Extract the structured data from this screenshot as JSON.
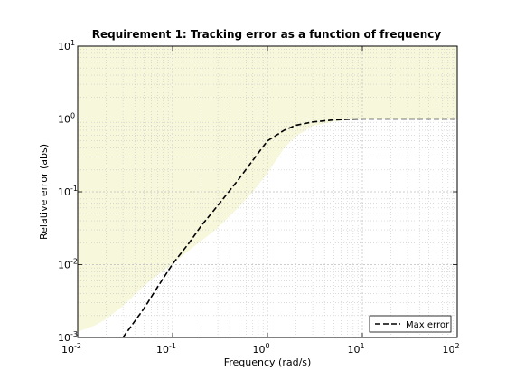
{
  "chart_data": {
    "type": "line",
    "title": "Requirement 1: Tracking error as a function of frequency",
    "xlabel": "Frequency (rad/s)",
    "ylabel": "Relative error (abs)",
    "xscale": "log",
    "yscale": "log",
    "xlim": [
      0.01,
      100
    ],
    "ylim": [
      0.001,
      10
    ],
    "x_ticks": [
      {
        "base": "10",
        "exp": "-2",
        "value": 0.01
      },
      {
        "base": "10",
        "exp": "-1",
        "value": 0.1
      },
      {
        "base": "10",
        "exp": "0",
        "value": 1
      },
      {
        "base": "10",
        "exp": "1",
        "value": 10
      },
      {
        "base": "10",
        "exp": "2",
        "value": 100
      }
    ],
    "y_ticks": [
      {
        "base": "10",
        "exp": "-3",
        "value": 0.001
      },
      {
        "base": "10",
        "exp": "-2",
        "value": 0.01
      },
      {
        "base": "10",
        "exp": "-1",
        "value": 0.1
      },
      {
        "base": "10",
        "exp": "0",
        "value": 1
      },
      {
        "base": "10",
        "exp": "1",
        "value": 10
      }
    ],
    "grid": true,
    "minor_grid": true,
    "shaded_region": {
      "description_color": "#f7f7dc",
      "x": [
        0.01,
        0.015,
        0.02,
        0.03,
        0.05,
        0.07,
        0.1,
        0.15,
        0.2,
        0.3,
        0.5,
        0.7,
        1.0,
        1.5,
        2.0,
        3.0,
        5.0,
        7.0,
        10.0,
        20.0,
        50.0,
        100.0
      ],
      "lower": [
        0.0012,
        0.00145,
        0.0018,
        0.0027,
        0.0051,
        0.0073,
        0.0102,
        0.0158,
        0.021,
        0.032,
        0.062,
        0.1,
        0.18,
        0.4,
        0.58,
        0.8,
        0.92,
        0.97,
        0.99,
        1.0,
        1.0,
        1.0
      ]
    },
    "series": [
      {
        "name": "Max error",
        "style": "dashed",
        "color": "#000000",
        "x": [
          0.03,
          0.05,
          0.07,
          0.1,
          0.15,
          0.2,
          0.3,
          0.5,
          0.7,
          1.0,
          1.5,
          2.0,
          3.0,
          5.0,
          7.0,
          10.0,
          20.0,
          50.0,
          100.0
        ],
        "y": [
          0.001,
          0.0025,
          0.005,
          0.0102,
          0.02,
          0.034,
          0.065,
          0.15,
          0.27,
          0.5,
          0.7,
          0.82,
          0.91,
          0.97,
          0.99,
          1.0,
          1.0,
          1.0,
          1.0
        ]
      }
    ],
    "legend": {
      "position": "bottom-right"
    }
  }
}
